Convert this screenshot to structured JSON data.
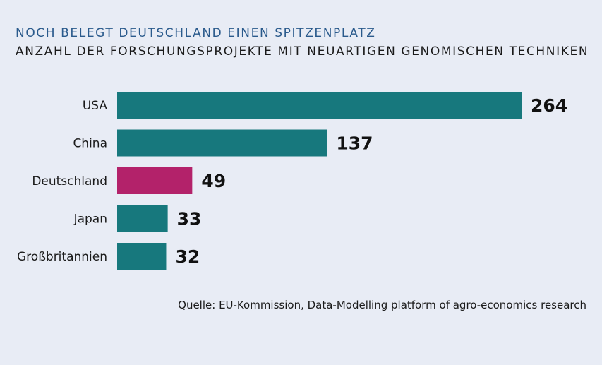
{
  "header": {
    "title": "NOCH BELEGT DEUTSCHLAND EINEN SPITZENPLATZ",
    "subtitle": "ANZAHL DER FORSCHUNGSPROJEKTE MIT NEUARTIGEN GENOMISCHEN TECHNIKEN"
  },
  "footer": {
    "source": "Quelle: EU-Kommission, Data-Modelling platform of agro-economics research"
  },
  "colors": {
    "background": "#e8ecf5",
    "bar_default": "#17787d",
    "bar_highlight": "#b3226a",
    "title": "#2a5a8c",
    "text": "#1a1a1a"
  },
  "chart_data": {
    "type": "bar",
    "orientation": "horizontal",
    "categories": [
      "USA",
      "China",
      "Deutschland",
      "Japan",
      "Großbritannien"
    ],
    "values": [
      264,
      137,
      49,
      33,
      32
    ],
    "highlight": "Deutschland",
    "xlim": [
      0,
      264
    ],
    "grid": false,
    "data_labels": true
  }
}
